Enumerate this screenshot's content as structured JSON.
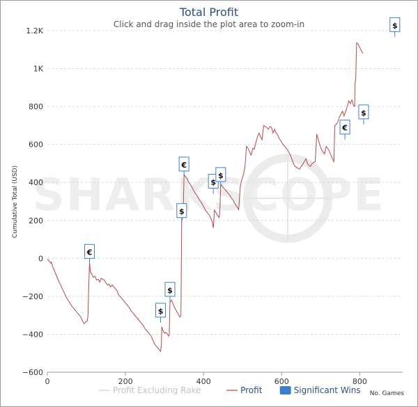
{
  "chart_data": {
    "type": "line",
    "title": "Total Profit",
    "subtitle": "Click and drag inside the plot area to zoom-in",
    "xlabel": "No. Games",
    "ylabel": "Cumulative Total (USD)",
    "watermark": "SHARKSCOPE",
    "xlim": [
      0,
      910
    ],
    "ylim": [
      -600,
      1200
    ],
    "x_ticks": [
      0,
      200,
      400,
      600,
      800
    ],
    "y_ticks": [
      -600,
      -400,
      -200,
      0,
      200,
      400,
      600,
      800,
      1000,
      1200
    ],
    "y_tick_labels": [
      "−600",
      "−400",
      "−200",
      "0",
      "200",
      "400",
      "600",
      "800",
      "1K",
      "1.2K"
    ],
    "legend": [
      {
        "name": "Profit Excluding Rake",
        "color": "#d0d0d0",
        "enabled": false
      },
      {
        "name": "Profit",
        "color": "#b04a4a",
        "enabled": true
      },
      {
        "name": "Significant Wins",
        "color": "#3b7ecf",
        "enabled": true
      }
    ],
    "series": [
      {
        "name": "Profit",
        "color": "#b04a4a",
        "points": [
          [
            0,
            -5
          ],
          [
            5,
            -15
          ],
          [
            8,
            -25
          ],
          [
            10,
            -20
          ],
          [
            14,
            -45
          ],
          [
            18,
            -65
          ],
          [
            22,
            -85
          ],
          [
            26,
            -105
          ],
          [
            30,
            -125
          ],
          [
            34,
            -140
          ],
          [
            38,
            -160
          ],
          [
            42,
            -175
          ],
          [
            46,
            -195
          ],
          [
            50,
            -210
          ],
          [
            54,
            -225
          ],
          [
            58,
            -235
          ],
          [
            62,
            -250
          ],
          [
            66,
            -260
          ],
          [
            70,
            -270
          ],
          [
            74,
            -280
          ],
          [
            78,
            -290
          ],
          [
            82,
            -300
          ],
          [
            86,
            -310
          ],
          [
            90,
            -330
          ],
          [
            94,
            -345
          ],
          [
            98,
            -335
          ],
          [
            102,
            -330
          ],
          [
            104,
            -300
          ],
          [
            106,
            -150
          ],
          [
            108,
            -20
          ],
          [
            110,
            -70
          ],
          [
            114,
            -85
          ],
          [
            118,
            -100
          ],
          [
            122,
            -95
          ],
          [
            126,
            -115
          ],
          [
            130,
            -110
          ],
          [
            134,
            -125
          ],
          [
            138,
            -105
          ],
          [
            142,
            -110
          ],
          [
            146,
            -115
          ],
          [
            150,
            -130
          ],
          [
            154,
            -140
          ],
          [
            158,
            -135
          ],
          [
            162,
            -150
          ],
          [
            166,
            -140
          ],
          [
            170,
            -150
          ],
          [
            174,
            -160
          ],
          [
            178,
            -170
          ],
          [
            182,
            -190
          ],
          [
            186,
            -200
          ],
          [
            190,
            -210
          ],
          [
            194,
            -220
          ],
          [
            198,
            -230
          ],
          [
            202,
            -240
          ],
          [
            206,
            -250
          ],
          [
            210,
            -260
          ],
          [
            214,
            -275
          ],
          [
            218,
            -285
          ],
          [
            222,
            -295
          ],
          [
            226,
            -305
          ],
          [
            230,
            -315
          ],
          [
            234,
            -325
          ],
          [
            238,
            -335
          ],
          [
            242,
            -345
          ],
          [
            246,
            -355
          ],
          [
            250,
            -370
          ],
          [
            254,
            -380
          ],
          [
            258,
            -390
          ],
          [
            262,
            -400
          ],
          [
            266,
            -410
          ],
          [
            270,
            -430
          ],
          [
            274,
            -450
          ],
          [
            278,
            -460
          ],
          [
            282,
            -470
          ],
          [
            286,
            -480
          ],
          [
            290,
            -490
          ],
          [
            292,
            -460
          ],
          [
            293,
            -360
          ],
          [
            296,
            -380
          ],
          [
            300,
            -395
          ],
          [
            304,
            -390
          ],
          [
            308,
            -400
          ],
          [
            310,
            -410
          ],
          [
            312,
            -405
          ],
          [
            314,
            -230
          ],
          [
            318,
            -220
          ],
          [
            322,
            -240
          ],
          [
            326,
            -260
          ],
          [
            330,
            -275
          ],
          [
            334,
            -290
          ],
          [
            338,
            -305
          ],
          [
            340,
            -310
          ],
          [
            342,
            -300
          ],
          [
            344,
            200
          ],
          [
            346,
            210
          ],
          [
            348,
            250
          ],
          [
            350,
            440
          ],
          [
            354,
            430
          ],
          [
            358,
            420
          ],
          [
            362,
            400
          ],
          [
            366,
            390
          ],
          [
            370,
            375
          ],
          [
            374,
            360
          ],
          [
            378,
            345
          ],
          [
            382,
            335
          ],
          [
            386,
            320
          ],
          [
            390,
            305
          ],
          [
            394,
            295
          ],
          [
            398,
            280
          ],
          [
            402,
            265
          ],
          [
            406,
            250
          ],
          [
            410,
            240
          ],
          [
            414,
            230
          ],
          [
            418,
            215
          ],
          [
            422,
            195
          ],
          [
            425,
            160
          ],
          [
            428,
            255
          ],
          [
            432,
            240
          ],
          [
            436,
            225
          ],
          [
            440,
            215
          ],
          [
            442,
            260
          ],
          [
            444,
            390
          ],
          [
            448,
            380
          ],
          [
            452,
            370
          ],
          [
            456,
            360
          ],
          [
            460,
            350
          ],
          [
            464,
            340
          ],
          [
            468,
            330
          ],
          [
            472,
            315
          ],
          [
            476,
            305
          ],
          [
            480,
            290
          ],
          [
            484,
            275
          ],
          [
            488,
            265
          ],
          [
            490,
            255
          ],
          [
            494,
            380
          ],
          [
            498,
            415
          ],
          [
            502,
            440
          ],
          [
            506,
            480
          ],
          [
            510,
            590
          ],
          [
            514,
            580
          ],
          [
            518,
            560
          ],
          [
            522,
            545
          ],
          [
            526,
            580
          ],
          [
            530,
            575
          ],
          [
            534,
            610
          ],
          [
            538,
            640
          ],
          [
            542,
            660
          ],
          [
            546,
            640
          ],
          [
            550,
            625
          ],
          [
            554,
            700
          ],
          [
            558,
            695
          ],
          [
            562,
            690
          ],
          [
            566,
            680
          ],
          [
            570,
            695
          ],
          [
            574,
            690
          ],
          [
            578,
            660
          ],
          [
            582,
            680
          ],
          [
            586,
            660
          ],
          [
            590,
            650
          ],
          [
            594,
            630
          ],
          [
            598,
            620
          ],
          [
            602,
            605
          ],
          [
            606,
            595
          ],
          [
            610,
            585
          ],
          [
            614,
            575
          ],
          [
            618,
            560
          ],
          [
            622,
            545
          ],
          [
            626,
            525
          ],
          [
            630,
            500
          ],
          [
            634,
            485
          ],
          [
            638,
            480
          ],
          [
            642,
            475
          ],
          [
            646,
            470
          ],
          [
            650,
            485
          ],
          [
            654,
            495
          ],
          [
            658,
            510
          ],
          [
            662,
            525
          ],
          [
            666,
            500
          ],
          [
            670,
            490
          ],
          [
            674,
            485
          ],
          [
            678,
            500
          ],
          [
            682,
            505
          ],
          [
            686,
            510
          ],
          [
            690,
            655
          ],
          [
            694,
            625
          ],
          [
            698,
            595
          ],
          [
            702,
            575
          ],
          [
            706,
            560
          ],
          [
            710,
            550
          ],
          [
            714,
            590
          ],
          [
            718,
            580
          ],
          [
            722,
            565
          ],
          [
            726,
            545
          ],
          [
            730,
            525
          ],
          [
            734,
            510
          ],
          [
            736,
            700
          ],
          [
            740,
            705
          ],
          [
            744,
            720
          ],
          [
            748,
            745
          ],
          [
            752,
            760
          ],
          [
            756,
            775
          ],
          [
            760,
            750
          ],
          [
            764,
            775
          ],
          [
            768,
            800
          ],
          [
            772,
            830
          ],
          [
            776,
            815
          ],
          [
            780,
            835
          ],
          [
            784,
            805
          ],
          [
            787,
            800
          ],
          [
            788,
            920
          ],
          [
            790,
            950
          ],
          [
            792,
            1135
          ],
          [
            796,
            1130
          ],
          [
            800,
            1110
          ],
          [
            804,
            1095
          ],
          [
            808,
            1080
          ]
        ]
      }
    ],
    "significant_wins": [
      {
        "x": 108,
        "y": 0,
        "label": "€"
      },
      {
        "x": 290,
        "y": -310,
        "label": "$"
      },
      {
        "x": 314,
        "y": -200,
        "label": "$"
      },
      {
        "x": 344,
        "y": 215,
        "label": "$"
      },
      {
        "x": 350,
        "y": 460,
        "label": "€"
      },
      {
        "x": 425,
        "y": 370,
        "label": "$"
      },
      {
        "x": 444,
        "y": 405,
        "label": "$"
      },
      {
        "x": 762,
        "y": 655,
        "label": "€"
      },
      {
        "x": 810,
        "y": 735,
        "label": "$"
      },
      {
        "x": 890,
        "y": 1195,
        "label": "$"
      }
    ]
  }
}
